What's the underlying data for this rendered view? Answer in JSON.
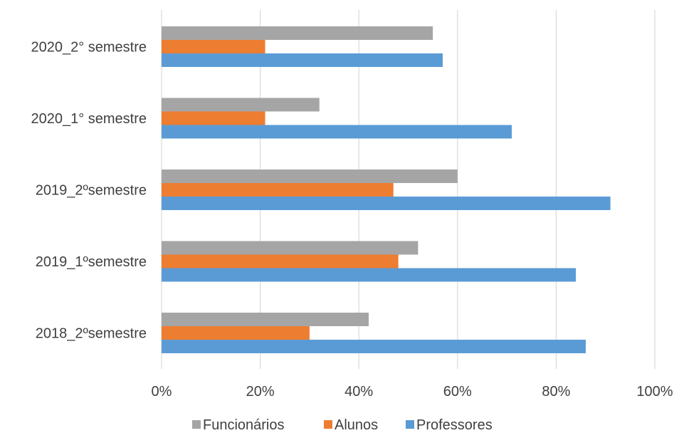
{
  "chart_data": {
    "type": "bar",
    "orientation": "horizontal",
    "categories": [
      "2020_2° semestre",
      "2020_1° semestre",
      "2019_2ºsemestre",
      "2019_1ºsemestre",
      "2018_2ºsemestre"
    ],
    "series": [
      {
        "name": "Funcionários",
        "color": "#A5A5A5",
        "values": [
          55,
          32,
          60,
          52,
          42
        ]
      },
      {
        "name": "Alunos",
        "color": "#ED7D31",
        "values": [
          21,
          21,
          47,
          48,
          30
        ]
      },
      {
        "name": "Professores",
        "color": "#5B9BD5",
        "values": [
          57,
          71,
          91,
          84,
          86
        ]
      }
    ],
    "x_ticks": [
      "0%",
      "20%",
      "40%",
      "60%",
      "80%",
      "100%"
    ],
    "xlim": [
      0,
      100
    ],
    "grid": true,
    "legend_position": "bottom",
    "title": "",
    "xlabel": "",
    "ylabel": ""
  }
}
